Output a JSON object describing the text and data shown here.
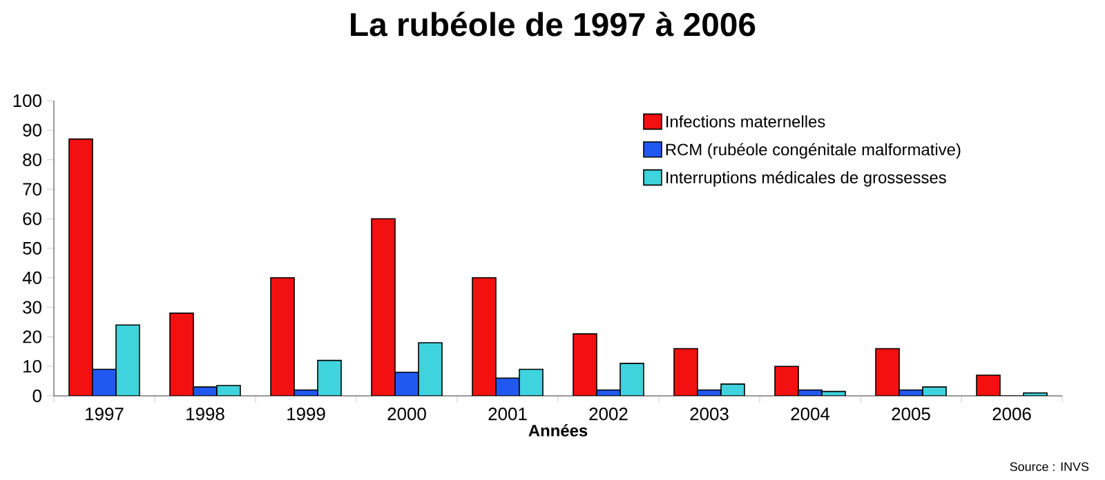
{
  "chart_data": {
    "type": "bar",
    "title": "La rubéole de 1997 à 2006",
    "xlabel": "Années",
    "categories": [
      "1997",
      "1998",
      "1999",
      "2000",
      "2001",
      "2002",
      "2003",
      "2004",
      "2005",
      "2006"
    ],
    "series": [
      {
        "name": "Infections maternelles",
        "color": "#f21010",
        "values": [
          87,
          28,
          40,
          60,
          40,
          21,
          16,
          10,
          16,
          7
        ]
      },
      {
        "name": "RCM (rubéole congénitale malformative)",
        "color": "#2159f0",
        "values": [
          9,
          3,
          2,
          8,
          6,
          2,
          2,
          2,
          2,
          0
        ]
      },
      {
        "name": "Interruptions médicales de grossesses",
        "color": "#3ed3dd",
        "values": [
          24,
          3.5,
          12,
          18,
          9,
          11,
          4,
          1.5,
          3,
          1
        ]
      }
    ],
    "ylim": [
      0,
      100
    ],
    "yticks": [
      0,
      10,
      20,
      30,
      40,
      50,
      60,
      70,
      80,
      90,
      100
    ],
    "grid": false,
    "legend": "top right",
    "annotations": [
      "Source : INVS"
    ]
  }
}
